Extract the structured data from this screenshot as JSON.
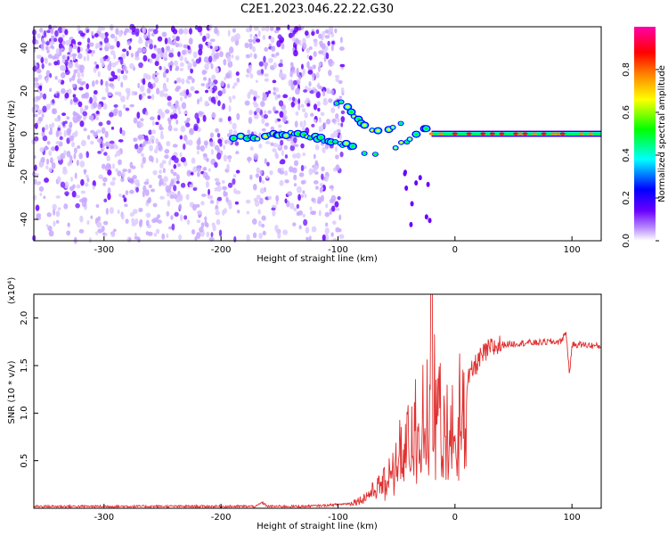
{
  "title": "C2E1.2023.046.22.22.G30",
  "chart_data": [
    {
      "type": "heatmap",
      "title": "C2E1.2023.046.22.22.G30",
      "xlabel": "Height of straight line (km)",
      "ylabel": "Frequency (Hz)",
      "xlim": [
        -360,
        125
      ],
      "ylim": [
        -50,
        50
      ],
      "xticks": [
        -300,
        -200,
        -100,
        0,
        100
      ],
      "yticks": [
        -40,
        -20,
        0,
        20,
        40
      ],
      "colorbar": {
        "label": "Normalized spectral amplitude",
        "range": [
          0.0,
          1.0
        ],
        "ticks": [
          0.0,
          0.2,
          0.4,
          0.6,
          0.8
        ],
        "colors": [
          "#ffffff",
          "#6a00ff",
          "#0000ff",
          "#00ffff",
          "#00ff00",
          "#ffff00",
          "#ff7f00",
          "#ff0000",
          "#ff00aa"
        ]
      },
      "noise_region_x": [
        -360,
        -95
      ],
      "noise_gap_x": [
        -185,
        -178
      ],
      "signal_trace": [
        {
          "x": -190,
          "y": -2
        },
        {
          "x": -180,
          "y": -2
        },
        {
          "x": -160,
          "y": -1
        },
        {
          "x": -140,
          "y": 0
        },
        {
          "x": -125,
          "y": -1
        },
        {
          "x": -110,
          "y": -3
        },
        {
          "x": -95,
          "y": -5
        },
        {
          "x": -80,
          "y": -8
        },
        {
          "x": -70,
          "y": -10
        },
        {
          "x": -60,
          "y": -12
        },
        {
          "x": -50,
          "y": -6
        },
        {
          "x": -40,
          "y": -2
        },
        {
          "x": -30,
          "y": 2
        },
        {
          "x": -20,
          "y": 1
        },
        {
          "x": 0,
          "y": 0
        },
        {
          "x": 50,
          "y": 0
        },
        {
          "x": 125,
          "y": 0
        }
      ],
      "upper_branch": [
        {
          "x": -105,
          "y": 16
        },
        {
          "x": -95,
          "y": 13
        },
        {
          "x": -85,
          "y": 7
        },
        {
          "x": -75,
          "y": 2
        },
        {
          "x": -60,
          "y": 1
        },
        {
          "x": -45,
          "y": 6
        }
      ]
    },
    {
      "type": "line",
      "title": "",
      "xlabel": "Height of straight line (km)",
      "ylabel": "SNR (10 * v/v)",
      "y_multiplier": "(x10⁴)",
      "xlim": [
        -360,
        125
      ],
      "ylim": [
        0,
        2.25
      ],
      "xticks": [
        -300,
        -200,
        -100,
        0,
        100
      ],
      "yticks": [
        0.5,
        1.0,
        1.5,
        2.0
      ],
      "ytick_labels": [
        "0.5",
        "1.0",
        "1.5",
        "2.0"
      ],
      "series": [
        {
          "color": "#e03030",
          "x": [
            -360,
            -300,
            -250,
            -200,
            -170,
            -165,
            -160,
            -130,
            -110,
            -100,
            -90,
            -80,
            -70,
            -60,
            -55,
            -50,
            -45,
            -40,
            -35,
            -30,
            -25,
            -20,
            -15,
            -10,
            -5,
            0,
            5,
            10,
            15,
            20,
            25,
            30,
            40,
            50,
            60,
            70,
            80,
            90,
            95,
            98,
            100,
            110,
            125
          ],
          "y": [
            0.02,
            0.02,
            0.02,
            0.02,
            0.02,
            0.06,
            0.02,
            0.02,
            0.03,
            0.04,
            0.05,
            0.09,
            0.18,
            0.28,
            0.45,
            0.55,
            0.7,
            0.75,
            0.85,
            1.05,
            1.2,
            1.3,
            1.1,
            0.95,
            0.9,
            1.0,
            1.15,
            1.3,
            1.45,
            1.55,
            1.62,
            1.68,
            1.72,
            1.73,
            1.74,
            1.74,
            1.75,
            1.75,
            1.85,
            1.4,
            1.72,
            1.72,
            1.7
          ]
        }
      ]
    }
  ]
}
